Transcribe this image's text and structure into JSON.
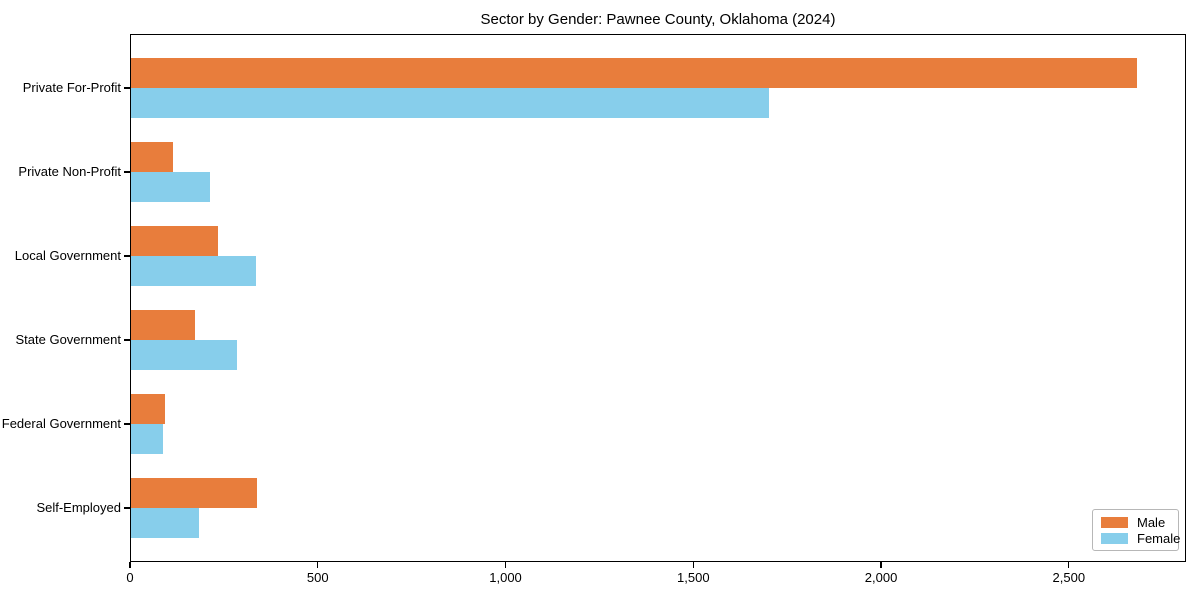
{
  "figure": {
    "background": "#ffffff",
    "spine_color": "#000000",
    "text_color": "#000000",
    "legend_border_color": "#b7b7b7"
  },
  "chart_data": {
    "type": "bar",
    "orientation": "horizontal",
    "title": "Sector by Gender: Pawnee County, Oklahoma (2024)",
    "categories": [
      "Private For-Profit",
      "Private Non-Profit",
      "Local Government",
      "State Government",
      "Federal Government",
      "Self-Employed"
    ],
    "series": [
      {
        "name": "Male",
        "color": "#e87d3c",
        "values": [
          2678,
          112,
          232,
          170,
          91,
          335
        ]
      },
      {
        "name": "Female",
        "color": "#87ceeb",
        "values": [
          1698,
          211,
          333,
          282,
          86,
          180
        ]
      }
    ],
    "xlabel": "",
    "ylabel": "",
    "xlim": [
      0,
      2812
    ],
    "xticks": [
      0,
      500,
      1000,
      1500,
      2000,
      2500
    ],
    "xtick_labels": [
      "0",
      "500",
      "1,000",
      "1,500",
      "2,000",
      "2,500"
    ],
    "grid": false,
    "legend": {
      "position": "lower right"
    }
  }
}
